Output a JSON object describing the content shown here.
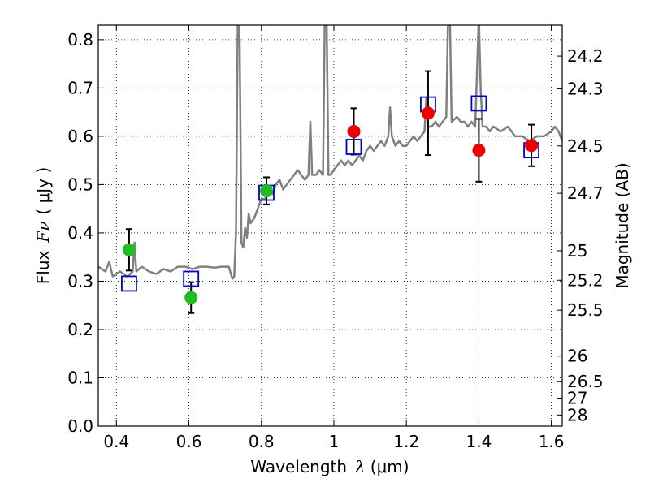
{
  "chart_data": {
    "type": "scatter",
    "x_axis": {
      "range": [
        0.35,
        1.63
      ],
      "ticks": [
        0.4,
        0.6,
        0.8,
        1.0,
        1.2,
        1.4,
        1.6
      ],
      "tick_labels": [
        "0.4",
        "0.6",
        "0.8",
        "1",
        "1.2",
        "1.4",
        "1.6"
      ],
      "label_prefix": "Wavelength",
      "label_symbol": "λ",
      "label_units": "(μm)"
    },
    "y_axis": {
      "range": [
        0.0,
        0.83
      ],
      "ticks": [
        0.0,
        0.1,
        0.2,
        0.3,
        0.4,
        0.5,
        0.6,
        0.7,
        0.8
      ],
      "tick_labels": [
        "0.0",
        "0.1",
        "0.2",
        "0.3",
        "0.4",
        "0.5",
        "0.6",
        "0.7",
        "0.8"
      ],
      "label_prefix": "Flux",
      "label_symbol": "Fν",
      "label_units": "( μJy )"
    },
    "y_axis_right": {
      "label": "Magnitude (AB)",
      "ticks": [
        {
          "flux": 0.766,
          "label": "24.2"
        },
        {
          "flux": 0.698,
          "label": "24.3"
        },
        {
          "flux": 0.58,
          "label": "24.5"
        },
        {
          "flux": 0.482,
          "label": "24.7"
        },
        {
          "flux": 0.363,
          "label": "25"
        },
        {
          "flux": 0.302,
          "label": "25.2"
        },
        {
          "flux": 0.24,
          "label": "25.5"
        },
        {
          "flux": 0.145,
          "label": "26"
        },
        {
          "flux": 0.092,
          "label": "26.5"
        },
        {
          "flux": 0.058,
          "label": "27"
        },
        {
          "flux": 0.023,
          "label": "28"
        }
      ]
    },
    "grid": true,
    "grid_style": "dotted",
    "series": [
      {
        "kind": "model_spectrum",
        "color": "#808080",
        "points": [
          [
            0.35,
            0.33
          ],
          [
            0.37,
            0.32
          ],
          [
            0.38,
            0.34
          ],
          [
            0.39,
            0.31
          ],
          [
            0.41,
            0.32
          ],
          [
            0.43,
            0.31
          ],
          [
            0.445,
            0.32
          ],
          [
            0.45,
            0.38
          ],
          [
            0.455,
            0.32
          ],
          [
            0.47,
            0.33
          ],
          [
            0.49,
            0.32
          ],
          [
            0.51,
            0.315
          ],
          [
            0.53,
            0.325
          ],
          [
            0.55,
            0.32
          ],
          [
            0.57,
            0.33
          ],
          [
            0.59,
            0.33
          ],
          [
            0.61,
            0.325
          ],
          [
            0.63,
            0.33
          ],
          [
            0.65,
            0.33
          ],
          [
            0.67,
            0.328
          ],
          [
            0.69,
            0.33
          ],
          [
            0.71,
            0.33
          ],
          [
            0.72,
            0.305
          ],
          [
            0.725,
            0.31
          ],
          [
            0.73,
            0.4
          ],
          [
            0.735,
            0.85
          ],
          [
            0.74,
            0.8
          ],
          [
            0.745,
            0.38
          ],
          [
            0.75,
            0.37
          ],
          [
            0.755,
            0.41
          ],
          [
            0.76,
            0.39
          ],
          [
            0.765,
            0.44
          ],
          [
            0.77,
            0.42
          ],
          [
            0.78,
            0.43
          ],
          [
            0.79,
            0.45
          ],
          [
            0.8,
            0.47
          ],
          [
            0.81,
            0.47
          ],
          [
            0.82,
            0.49
          ],
          [
            0.83,
            0.48
          ],
          [
            0.84,
            0.5
          ],
          [
            0.85,
            0.51
          ],
          [
            0.86,
            0.49
          ],
          [
            0.87,
            0.5
          ],
          [
            0.88,
            0.51
          ],
          [
            0.89,
            0.52
          ],
          [
            0.9,
            0.53
          ],
          [
            0.91,
            0.52
          ],
          [
            0.92,
            0.51
          ],
          [
            0.93,
            0.52
          ],
          [
            0.935,
            0.63
          ],
          [
            0.94,
            0.52
          ],
          [
            0.95,
            0.52
          ],
          [
            0.96,
            0.53
          ],
          [
            0.97,
            0.52
          ],
          [
            0.975,
            0.85
          ],
          [
            0.98,
            0.85
          ],
          [
            0.985,
            0.52
          ],
          [
            0.99,
            0.52
          ],
          [
            1.0,
            0.53
          ],
          [
            1.01,
            0.54
          ],
          [
            1.02,
            0.55
          ],
          [
            1.03,
            0.54
          ],
          [
            1.04,
            0.55
          ],
          [
            1.05,
            0.54
          ],
          [
            1.06,
            0.55
          ],
          [
            1.07,
            0.56
          ],
          [
            1.08,
            0.55
          ],
          [
            1.09,
            0.57
          ],
          [
            1.1,
            0.58
          ],
          [
            1.11,
            0.57
          ],
          [
            1.12,
            0.58
          ],
          [
            1.13,
            0.59
          ],
          [
            1.14,
            0.58
          ],
          [
            1.15,
            0.6
          ],
          [
            1.155,
            0.66
          ],
          [
            1.16,
            0.6
          ],
          [
            1.17,
            0.58
          ],
          [
            1.18,
            0.59
          ],
          [
            1.19,
            0.58
          ],
          [
            1.2,
            0.58
          ],
          [
            1.21,
            0.59
          ],
          [
            1.22,
            0.6
          ],
          [
            1.23,
            0.59
          ],
          [
            1.24,
            0.6
          ],
          [
            1.25,
            0.61
          ],
          [
            1.255,
            0.68
          ],
          [
            1.26,
            0.62
          ],
          [
            1.27,
            0.62
          ],
          [
            1.28,
            0.63
          ],
          [
            1.29,
            0.62
          ],
          [
            1.3,
            0.63
          ],
          [
            1.31,
            0.64
          ],
          [
            1.315,
            0.85
          ],
          [
            1.32,
            0.85
          ],
          [
            1.325,
            0.63
          ],
          [
            1.34,
            0.64
          ],
          [
            1.35,
            0.63
          ],
          [
            1.36,
            0.63
          ],
          [
            1.37,
            0.62
          ],
          [
            1.38,
            0.63
          ],
          [
            1.39,
            0.62
          ],
          [
            1.4,
            0.85
          ],
          [
            1.405,
            0.7
          ],
          [
            1.41,
            0.62
          ],
          [
            1.42,
            0.62
          ],
          [
            1.43,
            0.61
          ],
          [
            1.44,
            0.62
          ],
          [
            1.46,
            0.61
          ],
          [
            1.48,
            0.62
          ],
          [
            1.5,
            0.6
          ],
          [
            1.52,
            0.6
          ],
          [
            1.54,
            0.59
          ],
          [
            1.56,
            0.6
          ],
          [
            1.58,
            0.6
          ],
          [
            1.6,
            0.61
          ],
          [
            1.61,
            0.62
          ],
          [
            1.62,
            0.61
          ],
          [
            1.63,
            0.59
          ]
        ]
      },
      {
        "kind": "model_photometry",
        "marker": "open-square",
        "color": "#0000cc",
        "points": [
          {
            "x": 0.435,
            "y": 0.295
          },
          {
            "x": 0.606,
            "y": 0.305
          },
          {
            "x": 0.814,
            "y": 0.483
          },
          {
            "x": 1.055,
            "y": 0.578
          },
          {
            "x": 1.26,
            "y": 0.666
          },
          {
            "x": 1.4,
            "y": 0.668
          },
          {
            "x": 1.545,
            "y": 0.571
          }
        ]
      },
      {
        "kind": "observed_photometry",
        "marker": "filled-circle",
        "color": "#22bb22",
        "points": [
          {
            "x": 0.435,
            "y": 0.365,
            "err": 0.043
          },
          {
            "x": 0.606,
            "y": 0.266,
            "err": 0.032
          },
          {
            "x": 0.814,
            "y": 0.487,
            "err": 0.028
          }
        ]
      },
      {
        "kind": "observed_photometry",
        "marker": "filled-circle",
        "color": "#ee0000",
        "points": [
          {
            "x": 1.055,
            "y": 0.61,
            "err": 0.048
          },
          {
            "x": 1.26,
            "y": 0.648,
            "err": 0.087
          },
          {
            "x": 1.4,
            "y": 0.571,
            "err": 0.065
          },
          {
            "x": 1.545,
            "y": 0.581,
            "err": 0.043
          }
        ]
      }
    ]
  }
}
